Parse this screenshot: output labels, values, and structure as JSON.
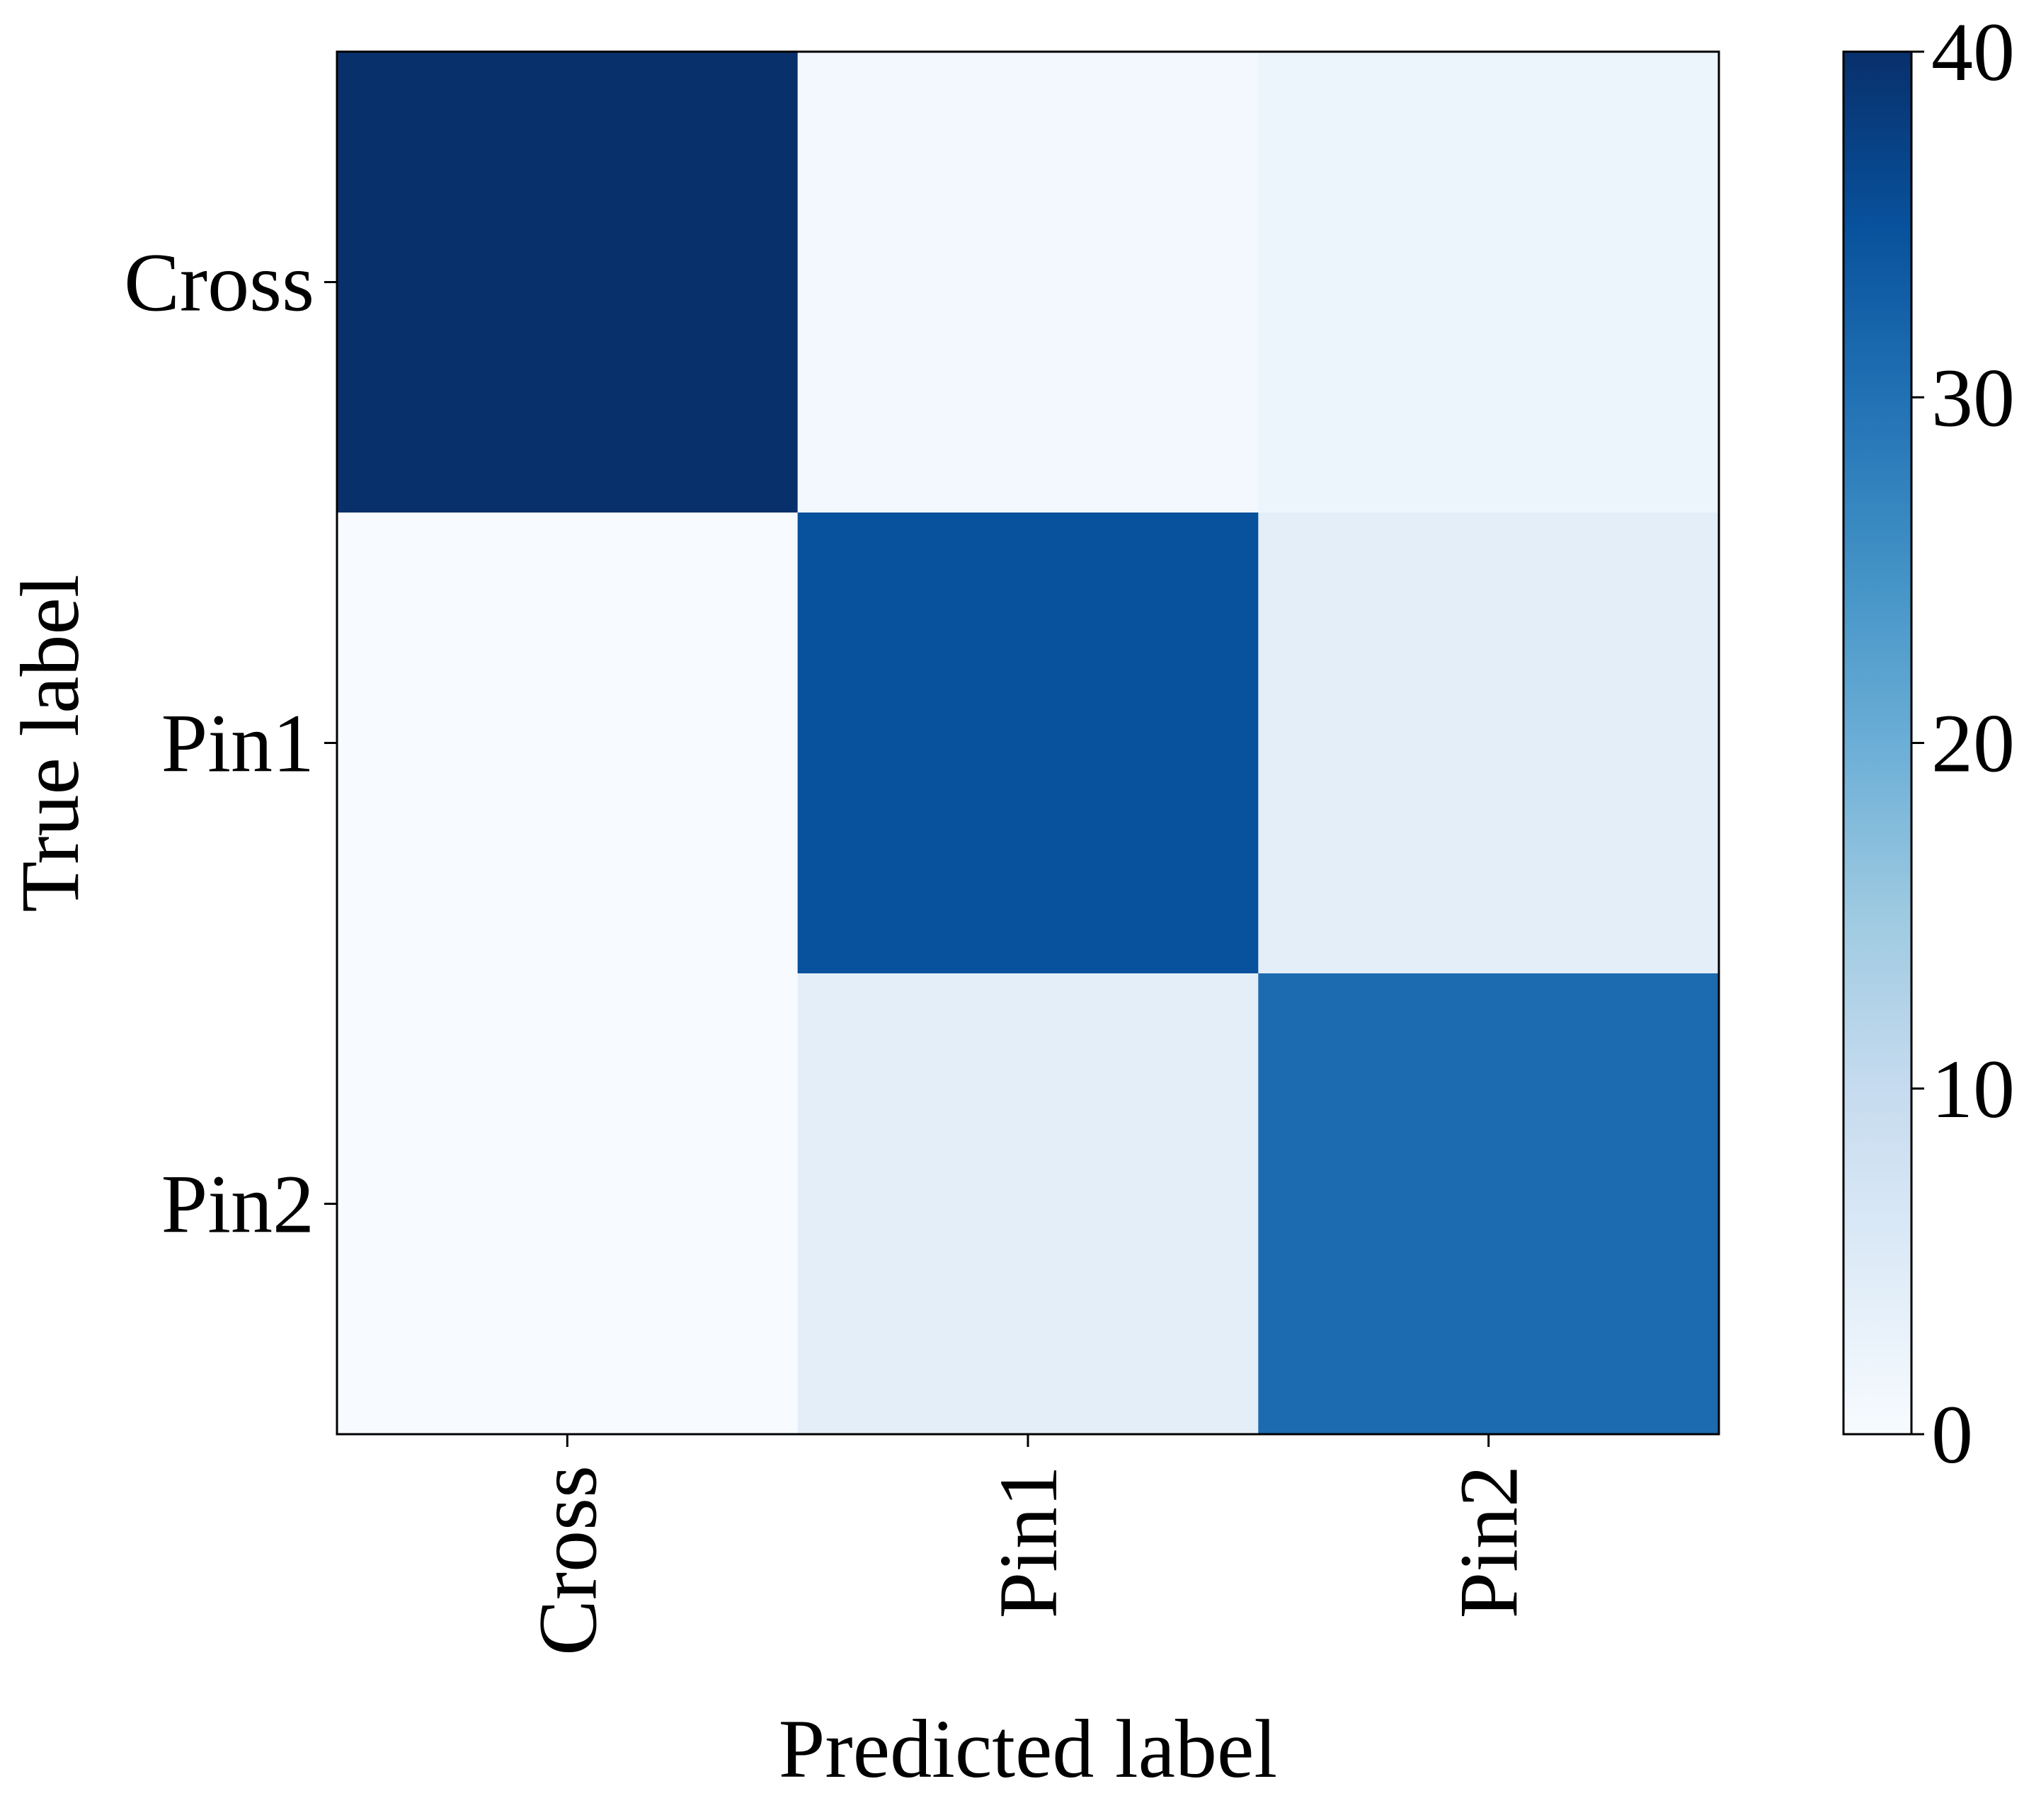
{
  "chart_data": {
    "type": "heatmap",
    "x_categories": [
      "Cross",
      "Pin1",
      "Pin2"
    ],
    "y_categories": [
      "Cross",
      "Pin1",
      "Pin2"
    ],
    "values": [
      [
        40,
        1,
        2
      ],
      [
        0,
        35,
        4
      ],
      [
        0,
        4,
        31
      ]
    ],
    "xlabel": "Predicted label",
    "ylabel": "True label",
    "colorbar": {
      "min": 0,
      "max": 40,
      "ticks": [
        0,
        10,
        20,
        30,
        40
      ],
      "colormap": "Blues"
    },
    "colormap_stops": [
      "#f7fbff",
      "#deebf7",
      "#c6dbef",
      "#9ecae1",
      "#6baed6",
      "#4292c6",
      "#2171b5",
      "#08519c",
      "#08306b"
    ]
  }
}
